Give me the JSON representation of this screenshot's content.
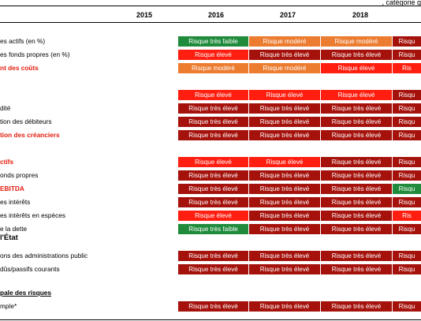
{
  "header": {
    "top_fragment": ", catégorie g",
    "years": [
      "2015",
      "2016",
      "2017",
      "2018"
    ]
  },
  "colors": {
    "very_low": "#1f8b3b",
    "moderate": "#ec7c30",
    "high": "#ff1e0f",
    "very_high": "#a5120c"
  },
  "rows": [
    {
      "label": "es actifs (en %)",
      "style": "normal",
      "cells": [
        {
          "text": "Risque très faible",
          "level": "very_low"
        },
        {
          "text": "Risque modéré",
          "level": "moderate"
        },
        {
          "text": "Risque modéré",
          "level": "moderate"
        },
        {
          "text": "Risqu",
          "level": "very_high"
        }
      ]
    },
    {
      "label": "es fonds propres (en %)",
      "style": "normal",
      "cells": [
        {
          "text": "Risque élevé",
          "level": "high"
        },
        {
          "text": "Risque très élevé",
          "level": "very_high"
        },
        {
          "text": "Risque très élevé",
          "level": "very_high"
        },
        {
          "text": "Risqu",
          "level": "very_high"
        }
      ]
    },
    {
      "label": "nt des coûts",
      "style": "bold-red",
      "cells": [
        {
          "text": "Risque modéré",
          "level": "moderate"
        },
        {
          "text": "Risque modéré",
          "level": "moderate"
        },
        {
          "text": "Risque élevé",
          "level": "high"
        },
        {
          "text": "Ris",
          "level": "high"
        }
      ]
    },
    {
      "label": "",
      "style": "normal",
      "cells": [
        {
          "text": "Risque élevé",
          "level": "high"
        },
        {
          "text": "Risque élevé",
          "level": "high"
        },
        {
          "text": "Risque élevé",
          "level": "high"
        },
        {
          "text": "Risqu",
          "level": "very_high"
        }
      ]
    },
    {
      "label": "dité",
      "style": "normal",
      "cells": [
        {
          "text": "Risque très élevé",
          "level": "very_high"
        },
        {
          "text": "Risque très élevé",
          "level": "very_high"
        },
        {
          "text": "Risque très élevé",
          "level": "very_high"
        },
        {
          "text": "Risqu",
          "level": "very_high"
        }
      ]
    },
    {
      "label": "tion des débiteurs",
      "style": "normal",
      "cells": [
        {
          "text": "Risque très élevé",
          "level": "very_high"
        },
        {
          "text": "Risque très élevé",
          "level": "very_high"
        },
        {
          "text": "Risque très élevé",
          "level": "very_high"
        },
        {
          "text": "Risqu",
          "level": "very_high"
        }
      ]
    },
    {
      "label": "tion des créanciers",
      "style": "bold-red",
      "cells": [
        {
          "text": "Risque très élevé",
          "level": "very_high"
        },
        {
          "text": "Risque très élevé",
          "level": "very_high"
        },
        {
          "text": "Risque très élevé",
          "level": "very_high"
        },
        {
          "text": "Risqu",
          "level": "very_high"
        }
      ]
    },
    {
      "label": "ctifs",
      "style": "bold-red",
      "cells": [
        {
          "text": "Risque élevé",
          "level": "high"
        },
        {
          "text": "Risque élevé",
          "level": "high"
        },
        {
          "text": "Risque très élevé",
          "level": "very_high"
        },
        {
          "text": "Risqu",
          "level": "very_high"
        }
      ]
    },
    {
      "label": "onds propres",
      "style": "normal",
      "cells": [
        {
          "text": "Risque très élevé",
          "level": "very_high"
        },
        {
          "text": "Risque très élevé",
          "level": "very_high"
        },
        {
          "text": "Risque très élevé",
          "level": "very_high"
        },
        {
          "text": "Risqu",
          "level": "very_high"
        }
      ]
    },
    {
      "label": "EBITDA",
      "style": "bold-red",
      "cells": [
        {
          "text": "Risque très élevé",
          "level": "very_high"
        },
        {
          "text": "Risque très élevé",
          "level": "very_high"
        },
        {
          "text": "Risque très élevé",
          "level": "very_high"
        },
        {
          "text": "Risqu",
          "level": "very_low"
        }
      ]
    },
    {
      "label": "es intérêts",
      "style": "normal",
      "cells": [
        {
          "text": "Risque très élevé",
          "level": "very_high"
        },
        {
          "text": "Risque très élevé",
          "level": "very_high"
        },
        {
          "text": "Risque très élevé",
          "level": "very_high"
        },
        {
          "text": "Risqu",
          "level": "very_high"
        }
      ]
    },
    {
      "label": "es intérêts en espèces",
      "style": "normal",
      "cells": [
        {
          "text": "Risque élevé",
          "level": "high"
        },
        {
          "text": "Risque très élevé",
          "level": "very_high"
        },
        {
          "text": "Risque très élevé",
          "level": "very_high"
        },
        {
          "text": "Ris",
          "level": "high"
        }
      ]
    },
    {
      "label": "e la dette",
      "style": "normal",
      "cells": [
        {
          "text": "Risque très faible",
          "level": "very_low"
        },
        {
          "text": "Risque très élevé",
          "level": "very_high"
        },
        {
          "text": "Risque très élevé",
          "level": "very_high"
        },
        {
          "text": "Risqu",
          "level": "very_high"
        }
      ]
    },
    {
      "label": " l'État",
      "style": "bold-big",
      "cells": []
    },
    {
      "label": "ons des administrations public",
      "style": "normal",
      "cells": [
        {
          "text": "Risque très élevé",
          "level": "very_high"
        },
        {
          "text": "Risque très élevé",
          "level": "very_high"
        },
        {
          "text": "Risque très élevé",
          "level": "very_high"
        },
        {
          "text": "Risqu",
          "level": "very_high"
        }
      ]
    },
    {
      "label": "dûs/passifs courants",
      "style": "normal",
      "cells": [
        {
          "text": "Risque très élevé",
          "level": "very_high"
        },
        {
          "text": "Risque très élevé",
          "level": "very_high"
        },
        {
          "text": "Risque très élevé",
          "level": "very_high"
        },
        {
          "text": "Risqu",
          "level": "very_high"
        }
      ]
    },
    {
      "label": "pale des risques",
      "style": "bold-underline",
      "cells": []
    },
    {
      "label": "mple*",
      "style": "normal",
      "cells": [
        {
          "text": "Risque très élevé",
          "level": "very_high"
        },
        {
          "text": "Risque très élevé",
          "level": "very_high"
        },
        {
          "text": "Risque très élevé",
          "level": "very_high"
        },
        {
          "text": "Risqu",
          "level": "very_high"
        }
      ]
    }
  ]
}
